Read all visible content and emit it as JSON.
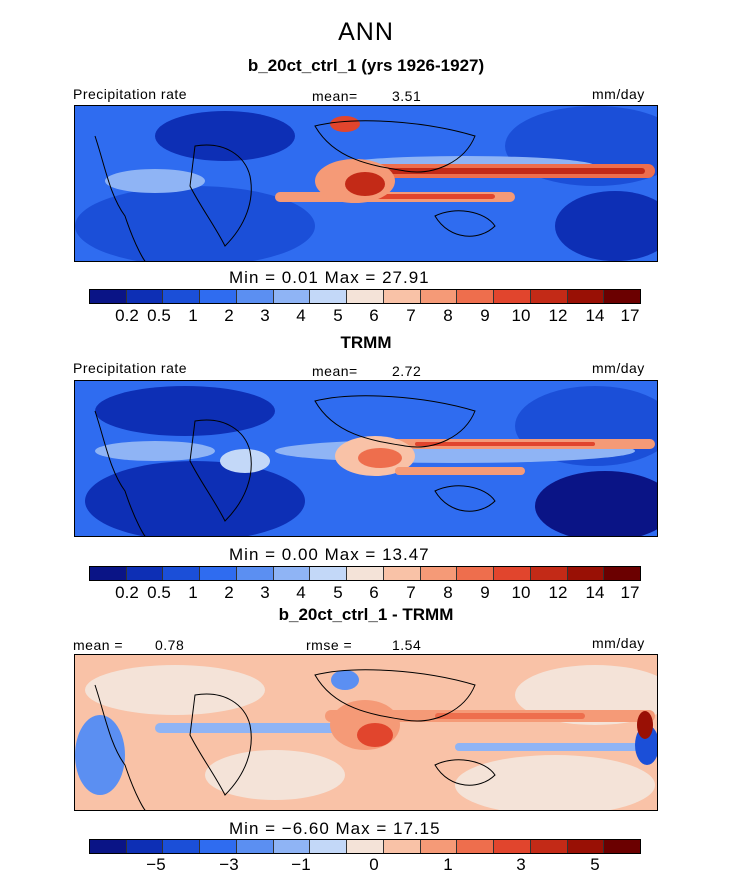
{
  "header": {
    "title": "ANN"
  },
  "panels": [
    {
      "title": "b_20ct_ctrl_1 (yrs 1926-1927)",
      "left_label": "Precipitation rate",
      "center_label": "mean=",
      "center_value": "3.51",
      "units": "mm/day",
      "minmax": "Min =    0.01  Max =   27.91",
      "scale_labels": [
        "0.2",
        "0.5",
        "1",
        "2",
        "3",
        "4",
        "5",
        "6",
        "7",
        "8",
        "9",
        "10",
        "12",
        "14",
        "17"
      ]
    },
    {
      "title": "TRMM",
      "left_label": "Precipitation rate",
      "center_label": "mean=",
      "center_value": "2.72",
      "units": "mm/day",
      "minmax": "Min =    0.00  Max =   13.47",
      "scale_labels": [
        "0.2",
        "0.5",
        "1",
        "2",
        "3",
        "4",
        "5",
        "6",
        "7",
        "8",
        "9",
        "10",
        "12",
        "14",
        "17"
      ]
    },
    {
      "title": "b_20ct_ctrl_1 - TRMM",
      "left_label": "mean =",
      "left_value": "0.78",
      "center_label": "rmse =",
      "center_value": "1.54",
      "units": "mm/day",
      "minmax": "Min =   −6.60  Max =   17.15",
      "scale_labels": [
        "−5",
        "−3",
        "−1",
        "0",
        "1",
        "3",
        "5"
      ]
    }
  ],
  "colors": {
    "abs_scale": [
      "#0a1486",
      "#0d2fb5",
      "#1b4fd8",
      "#2f6cf0",
      "#5b8ff2",
      "#8fb4f5",
      "#c3d8f8",
      "#f4e3d8",
      "#f9c2a7",
      "#f59a77",
      "#ee6e4d",
      "#e1452d",
      "#c32a17",
      "#991005",
      "#6b0000"
    ],
    "diff_scale": [
      "#0a1486",
      "#0d2fb5",
      "#1b4fd8",
      "#2f6cf0",
      "#5b8ff2",
      "#8fb4f5",
      "#c3d8f8",
      "#f4e3d8",
      "#f9c2a7",
      "#f59a77",
      "#ee6e4d",
      "#e1452d",
      "#c32a17",
      "#991005",
      "#6b0000"
    ]
  }
}
